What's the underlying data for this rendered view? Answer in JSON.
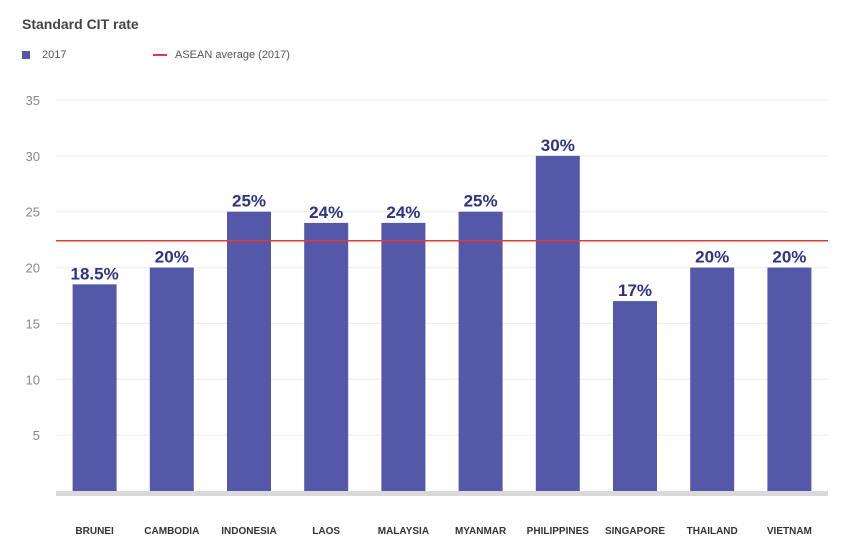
{
  "chart_data": {
    "type": "bar",
    "title": "Standard CIT rate",
    "categories": [
      "BRUNEI",
      "CAMBODIA",
      "INDONESIA",
      "LAOS",
      "MALAYSIA",
      "MYANMAR",
      "PHILIPPINES",
      "SINGAPORE",
      "THAILAND",
      "VIETNAM"
    ],
    "series": [
      {
        "name": "2017",
        "values": [
          18.5,
          20,
          25,
          24,
          24,
          25,
          30,
          17,
          20,
          20
        ],
        "data_labels": [
          "18.5%",
          "20%",
          "25%",
          "24%",
          "24%",
          "25%",
          "30%",
          "17%",
          "20%",
          "20%"
        ],
        "color": "#5558a8"
      }
    ],
    "reference_line": {
      "name": "ASEAN average (2017)",
      "value": 22.4,
      "color": "#e53935"
    },
    "ylim": [
      0,
      35
    ],
    "y_ticks": [
      5,
      10,
      15,
      20,
      25,
      30,
      35
    ],
    "grid": true,
    "legend": "top-left",
    "xlabel": "",
    "ylabel": ""
  }
}
